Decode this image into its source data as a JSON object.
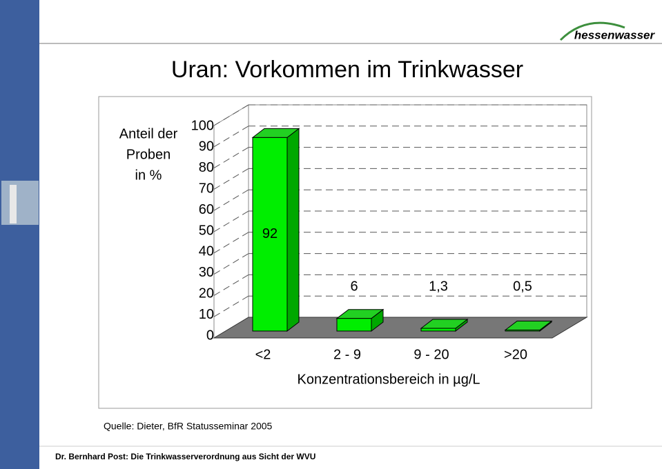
{
  "logo": "hessenwasser",
  "chart_data": {
    "type": "bar3d",
    "title": "Uran: Vorkommen im Trinkwasser",
    "ylabel": [
      "Anteil der",
      "Proben",
      "in %"
    ],
    "xlabel": "Konzentrationsbereich in µg/L",
    "categories": [
      "<2",
      "2 - 9",
      "9 - 20",
      ">20"
    ],
    "values": [
      92,
      6,
      1.3,
      0.5
    ],
    "value_labels": [
      "92",
      "6",
      "1,3",
      "0,5"
    ],
    "color": "#00ee00",
    "ylim": [
      0,
      100
    ],
    "yticks": [
      0,
      10,
      20,
      30,
      40,
      50,
      60,
      70,
      80,
      90,
      100
    ],
    "grid": true,
    "source": "Quelle: Dieter, BfR Statusseminar 2005"
  },
  "footer": "Dr. Bernhard Post: Die  Trinkwasserverordnung  aus Sicht der WVU"
}
